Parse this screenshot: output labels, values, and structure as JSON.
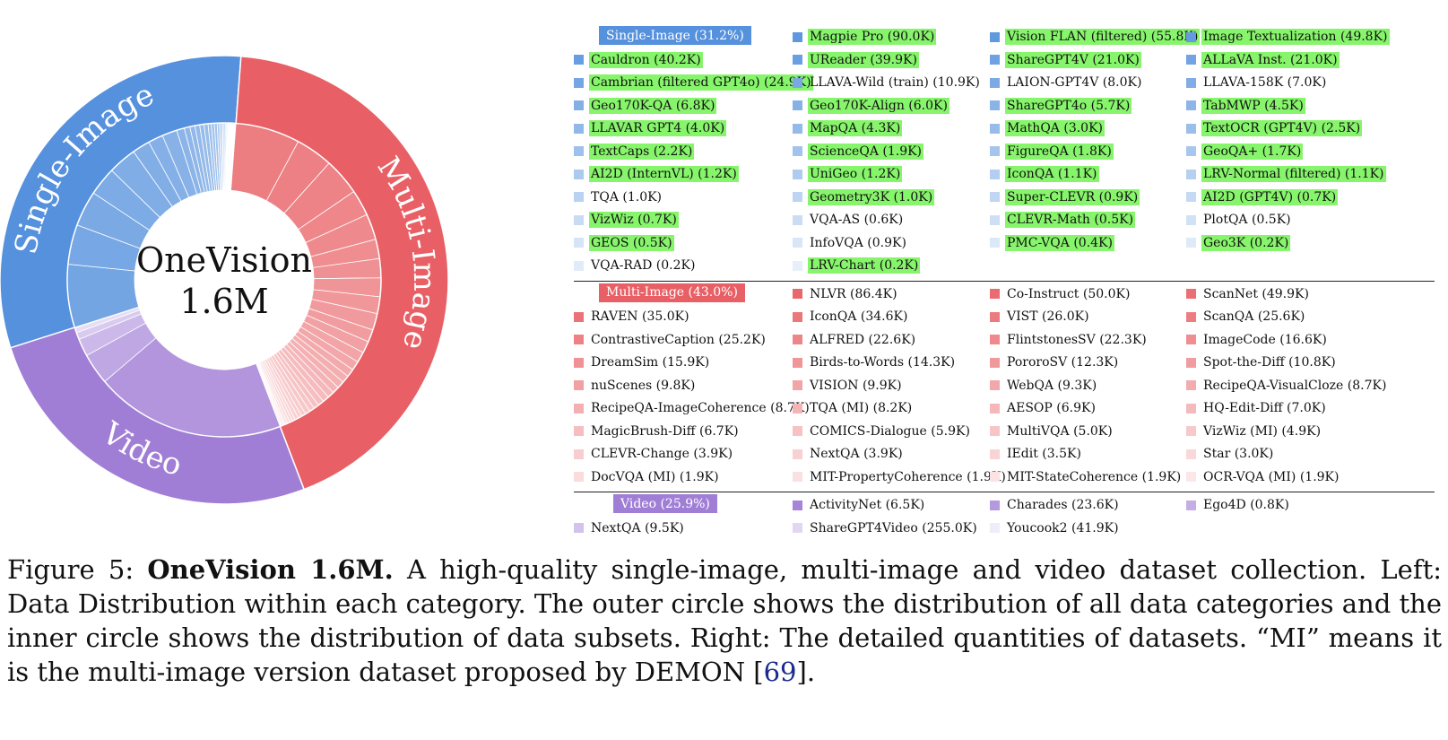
{
  "chart_data": {
    "type": "sunburst",
    "center_label": [
      "OneVision",
      "1.6M"
    ],
    "total_label": "1.6M",
    "categories": [
      {
        "name": "Single-Image",
        "ring_label": "Single-Image",
        "legend_label": "Single-Image (31.2%)",
        "percent": 31.2,
        "color": "#5591dd"
      },
      {
        "name": "Multi-Image",
        "ring_label": "Multi-Image",
        "legend_label": "Multi-Image (43.0%)",
        "percent": 43.0,
        "color": "#e86065"
      },
      {
        "name": "Video",
        "ring_label": "Video",
        "legend_label": "Video (25.9%)",
        "percent": 25.9,
        "color": "#a17ed6"
      }
    ],
    "datasets": {
      "Single-Image": [
        {
          "label": "Magpie Pro (90.0K)",
          "value": 90.0,
          "hl": true
        },
        {
          "label": "Vision FLAN (filtered) (55.8K)",
          "value": 55.8,
          "hl": true
        },
        {
          "label": "Image Textualization (49.8K)",
          "value": 49.8,
          "hl": true
        },
        {
          "label": "Cauldron (40.2K)",
          "value": 40.2,
          "hl": true
        },
        {
          "label": "UReader (39.9K)",
          "value": 39.9,
          "hl": true
        },
        {
          "label": "ShareGPT4V (21.0K)",
          "value": 21.0,
          "hl": true
        },
        {
          "label": "ALLaVA Inst. (21.0K)",
          "value": 21.0,
          "hl": true
        },
        {
          "label": "Cambrian (filtered GPT4o) (24.9K)",
          "value": 24.9,
          "hl": true
        },
        {
          "label": "LLAVA-Wild (train) (10.9K)",
          "value": 10.9,
          "hl": false
        },
        {
          "label": "LAION-GPT4V (8.0K)",
          "value": 8.0,
          "hl": false
        },
        {
          "label": "LLAVA-158K (7.0K)",
          "value": 7.0,
          "hl": false
        },
        {
          "label": "Geo170K-QA (6.8K)",
          "value": 6.8,
          "hl": true
        },
        {
          "label": "Geo170K-Align (6.0K)",
          "value": 6.0,
          "hl": true
        },
        {
          "label": "ShareGPT4o (5.7K)",
          "value": 5.7,
          "hl": true
        },
        {
          "label": "TabMWP (4.5K)",
          "value": 4.5,
          "hl": true
        },
        {
          "label": "LLAVAR GPT4 (4.0K)",
          "value": 4.0,
          "hl": true
        },
        {
          "label": "MapQA (4.3K)",
          "value": 4.3,
          "hl": true
        },
        {
          "label": "MathQA (3.0K)",
          "value": 3.0,
          "hl": true
        },
        {
          "label": "TextOCR (GPT4V) (2.5K)",
          "value": 2.5,
          "hl": true
        },
        {
          "label": "TextCaps (2.2K)",
          "value": 2.2,
          "hl": true
        },
        {
          "label": "ScienceQA (1.9K)",
          "value": 1.9,
          "hl": true
        },
        {
          "label": "FigureQA (1.8K)",
          "value": 1.8,
          "hl": true
        },
        {
          "label": "GeoQA+ (1.7K)",
          "value": 1.7,
          "hl": true
        },
        {
          "label": "AI2D (InternVL) (1.2K)",
          "value": 1.2,
          "hl": true
        },
        {
          "label": "UniGeo (1.2K)",
          "value": 1.2,
          "hl": true
        },
        {
          "label": "IconQA (1.1K)",
          "value": 1.1,
          "hl": true
        },
        {
          "label": "LRV-Normal (filtered) (1.1K)",
          "value": 1.1,
          "hl": true
        },
        {
          "label": "TQA (1.0K)",
          "value": 1.0,
          "hl": false
        },
        {
          "label": "Geometry3K (1.0K)",
          "value": 1.0,
          "hl": true
        },
        {
          "label": "Super-CLEVR (0.9K)",
          "value": 0.9,
          "hl": true
        },
        {
          "label": "AI2D (GPT4V) (0.7K)",
          "value": 0.7,
          "hl": true
        },
        {
          "label": "VizWiz (0.7K)",
          "value": 0.7,
          "hl": true
        },
        {
          "label": "VQA-AS (0.6K)",
          "value": 0.6,
          "hl": false
        },
        {
          "label": "CLEVR-Math (0.5K)",
          "value": 0.5,
          "hl": true
        },
        {
          "label": "PlotQA (0.5K)",
          "value": 0.5,
          "hl": false
        },
        {
          "label": "GEOS (0.5K)",
          "value": 0.5,
          "hl": true
        },
        {
          "label": "InfoVQA (0.9K)",
          "value": 0.9,
          "hl": false
        },
        {
          "label": "PMC-VQA (0.4K)",
          "value": 0.4,
          "hl": true
        },
        {
          "label": "Geo3K (0.2K)",
          "value": 0.2,
          "hl": true
        },
        {
          "label": "VQA-RAD (0.2K)",
          "value": 0.2,
          "hl": false
        },
        {
          "label": "LRV-Chart (0.2K)",
          "value": 0.2,
          "hl": true
        }
      ],
      "Multi-Image": [
        {
          "label": "NLVR (86.4K)",
          "value": 86.4,
          "hl": false
        },
        {
          "label": "Co-Instruct (50.0K)",
          "value": 50.0,
          "hl": false
        },
        {
          "label": "ScanNet (49.9K)",
          "value": 49.9,
          "hl": false
        },
        {
          "label": "RAVEN (35.0K)",
          "value": 35.0,
          "hl": false
        },
        {
          "label": "IconQA (34.6K)",
          "value": 34.6,
          "hl": false
        },
        {
          "label": "VIST (26.0K)",
          "value": 26.0,
          "hl": false
        },
        {
          "label": "ScanQA (25.6K)",
          "value": 25.6,
          "hl": false
        },
        {
          "label": "ContrastiveCaption (25.2K)",
          "value": 25.2,
          "hl": false
        },
        {
          "label": "ALFRED (22.6K)",
          "value": 22.6,
          "hl": false
        },
        {
          "label": "FlintstonesSV (22.3K)",
          "value": 22.3,
          "hl": false
        },
        {
          "label": "ImageCode (16.6K)",
          "value": 16.6,
          "hl": false
        },
        {
          "label": "DreamSim (15.9K)",
          "value": 15.9,
          "hl": false
        },
        {
          "label": "Birds-to-Words (14.3K)",
          "value": 14.3,
          "hl": false
        },
        {
          "label": "PororoSV (12.3K)",
          "value": 12.3,
          "hl": false
        },
        {
          "label": "Spot-the-Diff (10.8K)",
          "value": 10.8,
          "hl": false
        },
        {
          "label": "nuScenes (9.8K)",
          "value": 9.8,
          "hl": false
        },
        {
          "label": "VISION (9.9K)",
          "value": 9.9,
          "hl": false
        },
        {
          "label": "WebQA (9.3K)",
          "value": 9.3,
          "hl": false
        },
        {
          "label": "RecipeQA-VisualCloze (8.7K)",
          "value": 8.7,
          "hl": false
        },
        {
          "label": "RecipeQA-ImageCoherence (8.7K)",
          "value": 8.7,
          "hl": false
        },
        {
          "label": "TQA (MI) (8.2K)",
          "value": 8.2,
          "hl": false
        },
        {
          "label": "AESOP (6.9K)",
          "value": 6.9,
          "hl": false
        },
        {
          "label": "HQ-Edit-Diff (7.0K)",
          "value": 7.0,
          "hl": false
        },
        {
          "label": "MagicBrush-Diff (6.7K)",
          "value": 6.7,
          "hl": false
        },
        {
          "label": "COMICS-Dialogue (5.9K)",
          "value": 5.9,
          "hl": false
        },
        {
          "label": "MultiVQA (5.0K)",
          "value": 5.0,
          "hl": false
        },
        {
          "label": "VizWiz (MI) (4.9K)",
          "value": 4.9,
          "hl": false
        },
        {
          "label": "CLEVR-Change (3.9K)",
          "value": 3.9,
          "hl": false
        },
        {
          "label": "NextQA (3.9K)",
          "value": 3.9,
          "hl": false
        },
        {
          "label": "IEdit (3.5K)",
          "value": 3.5,
          "hl": false
        },
        {
          "label": "Star (3.0K)",
          "value": 3.0,
          "hl": false
        },
        {
          "label": "DocVQA (MI) (1.9K)",
          "value": 1.9,
          "hl": false
        },
        {
          "label": "MIT-PropertyCoherence (1.9K)",
          "value": 1.9,
          "hl": false
        },
        {
          "label": "MIT-StateCoherence (1.9K)",
          "value": 1.9,
          "hl": false
        },
        {
          "label": "OCR-VQA (MI) (1.9K)",
          "value": 1.9,
          "hl": false
        }
      ],
      "Video": [
        {
          "label": "ActivityNet (6.5K)",
          "value": 6.5,
          "hl": false
        },
        {
          "label": "Charades (23.6K)",
          "value": 23.6,
          "hl": false
        },
        {
          "label": "Ego4D (0.8K)",
          "value": 0.8,
          "hl": false
        },
        {
          "label": "NextQA (9.5K)",
          "value": 9.5,
          "hl": false
        },
        {
          "label": "ShareGPT4Video (255.0K)",
          "value": 255.0,
          "hl": false
        },
        {
          "label": "Youcook2 (41.9K)",
          "value": 41.9,
          "hl": false
        }
      ]
    }
  },
  "caption": {
    "figure_label": "Figure 5: ",
    "title": "OneVision 1.6M.",
    "text_before_ref": " A high-quality single-image, multi-image and video dataset collection. Left: Data Distribution within each category. The outer circle shows the distribution of all data categories and the inner circle shows the distribution of data subsets. Right: The detailed quantities of datasets. “MI” means it is the multi-image version dataset proposed by DEMON [",
    "ref": "69",
    "text_after_ref": "]."
  }
}
